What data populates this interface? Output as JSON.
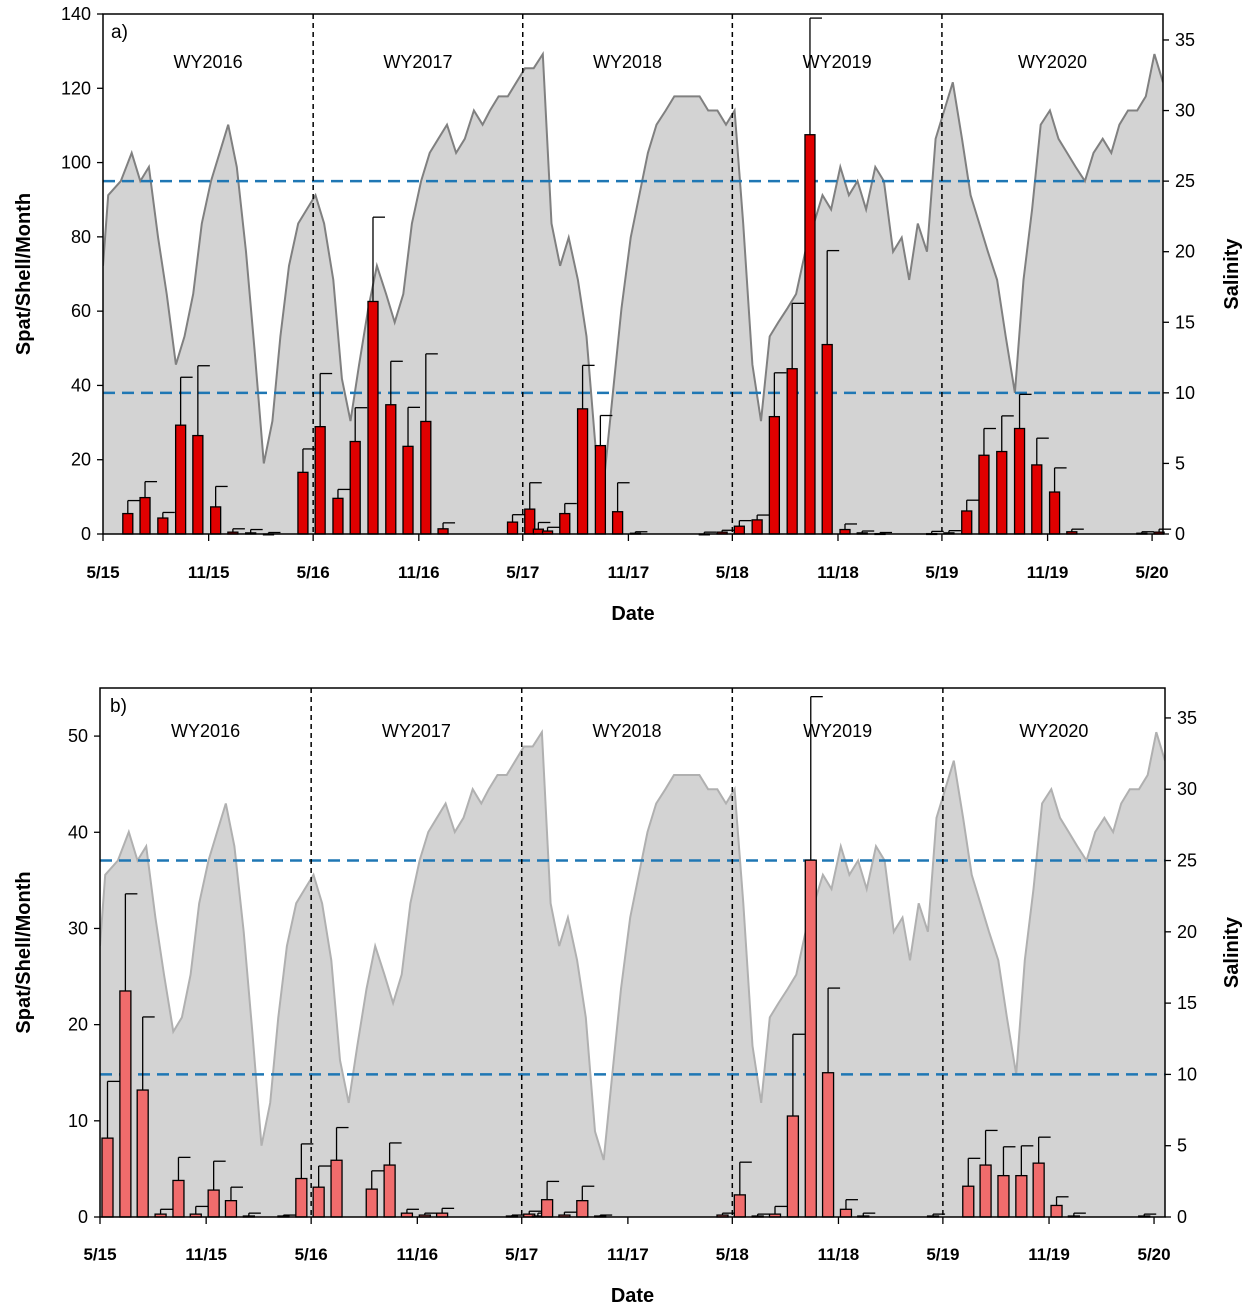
{
  "chart_data": [
    {
      "type": "bar",
      "panel_label": "a)",
      "title": "",
      "xlabel": "Date",
      "ylabel": "Spat/Shell/Month",
      "y2label": "Salinity",
      "x_range": [
        "2015-05-01",
        "2020-05-20"
      ],
      "ylim": [
        0,
        140
      ],
      "y2lim": [
        0,
        36.84
      ],
      "yticks": [
        0,
        20,
        40,
        60,
        80,
        100,
        120,
        140
      ],
      "y2ticks": [
        0,
        5,
        10,
        15,
        20,
        25,
        30,
        35
      ],
      "xtick_labels": [
        "5/15",
        "11/15",
        "5/16",
        "11/16",
        "5/17",
        "11/17",
        "5/18",
        "11/18",
        "5/19",
        "11/19",
        "5/20"
      ],
      "xtick_dates": [
        "2015-05-01",
        "2015-11-01",
        "2016-05-01",
        "2016-11-01",
        "2017-05-01",
        "2017-11-01",
        "2018-05-01",
        "2018-11-01",
        "2019-05-01",
        "2019-11-01",
        "2020-05-01"
      ],
      "water_year_labels": [
        "WY2016",
        "WY2017",
        "WY2018",
        "WY2019",
        "WY2020"
      ],
      "water_year_boundaries": [
        "2016-05-01",
        "2017-05-01",
        "2018-05-01",
        "2019-05-01"
      ],
      "salinity_thresholds": [
        10,
        25
      ],
      "grid": false,
      "bar_color": "#e00000",
      "salinity_line_color": "#808080",
      "salinity_fill_color": "#d3d3d3",
      "threshold_color": "#1f77b4",
      "series": [
        {
          "kind": "bar",
          "dates": [
            "2015-06-01",
            "2015-07-01",
            "2015-08-01",
            "2015-09-01",
            "2015-10-01",
            "2015-11-01",
            "2015-12-01",
            "2016-01-01",
            "2016-02-01",
            "2016-04-01",
            "2016-05-01",
            "2016-06-01",
            "2016-07-01",
            "2016-08-01",
            "2016-09-01",
            "2016-10-01",
            "2016-11-01",
            "2016-12-01",
            "2017-04-01",
            "2017-05-01",
            "2017-05-16",
            "2017-06-01",
            "2017-07-01",
            "2017-08-01",
            "2017-09-01",
            "2017-10-01",
            "2017-11-01",
            "2018-03-01",
            "2018-04-01",
            "2018-05-01",
            "2018-06-01",
            "2018-07-01",
            "2018-08-01",
            "2018-09-01",
            "2018-10-01",
            "2018-11-01",
            "2018-12-01",
            "2019-01-01",
            "2019-04-01",
            "2019-05-01",
            "2019-06-01",
            "2019-07-01",
            "2019-08-01",
            "2019-09-01",
            "2019-10-01",
            "2019-11-01",
            "2019-12-01",
            "2020-04-01",
            "2020-05-01"
          ],
          "values": [
            5.5,
            9.8,
            4.3,
            29.3,
            26.5,
            7.3,
            0.5,
            0.3,
            0,
            16.6,
            28.9,
            9.6,
            24.9,
            62.6,
            34.8,
            23.6,
            30.3,
            1.4,
            3.2,
            6.7,
            1.3,
            0.8,
            5.5,
            33.7,
            23.8,
            6.0,
            0.2,
            0,
            0.5,
            2.1,
            3.8,
            31.6,
            44.5,
            107.5,
            51.0,
            1.2,
            0.3,
            0.1,
            0.1,
            0.3,
            6.2,
            21.2,
            22.2,
            28.4,
            18.6,
            11.3,
            0.6,
            0.2,
            0.5
          ],
          "errors": [
            3.5,
            4.3,
            1.5,
            12.9,
            18.8,
            5.5,
            0.9,
            0.9,
            0.4,
            6.3,
            14.3,
            2.4,
            9.1,
            22.7,
            11.7,
            10.5,
            18.2,
            1.6,
            2.0,
            7.1,
            1.8,
            1.0,
            2.7,
            11.7,
            8.1,
            7.8,
            0.4,
            0.5,
            0.5,
            1.5,
            1.3,
            11.8,
            17.6,
            31.4,
            25.3,
            1.5,
            0.5,
            0.3,
            0.6,
            0.6,
            2.9,
            7.2,
            9.6,
            9.2,
            7.2,
            6.5,
            0.7,
            0.4,
            0.8
          ]
        },
        {
          "kind": "salinity",
          "dates": [
            "2015-05-01",
            "2015-05-10",
            "2015-06-01",
            "2015-06-20",
            "2015-07-05",
            "2015-07-20",
            "2015-08-05",
            "2015-08-20",
            "2015-09-05",
            "2015-09-20",
            "2015-10-05",
            "2015-10-20",
            "2015-11-05",
            "2015-11-20",
            "2015-12-05",
            "2015-12-20",
            "2016-01-05",
            "2016-01-20",
            "2016-02-05",
            "2016-02-20",
            "2016-03-05",
            "2016-03-20",
            "2016-04-05",
            "2016-04-20",
            "2016-05-05",
            "2016-05-20",
            "2016-06-05",
            "2016-06-20",
            "2016-07-05",
            "2016-07-20",
            "2016-08-05",
            "2016-08-20",
            "2016-09-05",
            "2016-09-20",
            "2016-10-05",
            "2016-10-20",
            "2016-11-05",
            "2016-11-20",
            "2016-12-05",
            "2016-12-20",
            "2017-01-05",
            "2017-01-20",
            "2017-02-05",
            "2017-02-20",
            "2017-03-05",
            "2017-03-20",
            "2017-04-05",
            "2017-04-20",
            "2017-05-05",
            "2017-05-20",
            "2017-06-05",
            "2017-06-20",
            "2017-07-05",
            "2017-07-20",
            "2017-08-05",
            "2017-08-20",
            "2017-09-05",
            "2017-09-20",
            "2017-10-05",
            "2017-10-20",
            "2017-11-05",
            "2017-11-20",
            "2017-12-05",
            "2017-12-20",
            "2018-01-05",
            "2018-01-20",
            "2018-02-05",
            "2018-02-20",
            "2018-03-05",
            "2018-03-20",
            "2018-04-05",
            "2018-04-20",
            "2018-05-05",
            "2018-05-20",
            "2018-06-05",
            "2018-06-20",
            "2018-07-05",
            "2018-07-20",
            "2018-08-05",
            "2018-08-20",
            "2018-09-05",
            "2018-09-20",
            "2018-10-05",
            "2018-10-20",
            "2018-11-05",
            "2018-11-20",
            "2018-12-05",
            "2018-12-20",
            "2019-01-05",
            "2019-01-20",
            "2019-02-05",
            "2019-02-20",
            "2019-03-05",
            "2019-03-20",
            "2019-04-05",
            "2019-04-20",
            "2019-05-05",
            "2019-05-20",
            "2019-06-05",
            "2019-06-20",
            "2019-07-05",
            "2019-07-20",
            "2019-08-05",
            "2019-08-20",
            "2019-09-05",
            "2019-09-20",
            "2019-10-05",
            "2019-10-20",
            "2019-11-05",
            "2019-11-20",
            "2019-12-05",
            "2019-12-20",
            "2020-01-05",
            "2020-01-20",
            "2020-02-05",
            "2020-02-20",
            "2020-03-05",
            "2020-03-20",
            "2020-04-05",
            "2020-04-20",
            "2020-05-05",
            "2020-05-20"
          ],
          "values": [
            19,
            24,
            25,
            27,
            25,
            26,
            21,
            17,
            12,
            14,
            17,
            22,
            25,
            27,
            29,
            26,
            20,
            13,
            5,
            8,
            14,
            19,
            22,
            23,
            24,
            22,
            18,
            11,
            8,
            12,
            16,
            19,
            17,
            15,
            17,
            22,
            25,
            27,
            28,
            29,
            27,
            28,
            30,
            29,
            30,
            31,
            31,
            32,
            33,
            33,
            34,
            22,
            19,
            21,
            18,
            14,
            6,
            4,
            10,
            16,
            21,
            24,
            27,
            29,
            30,
            31,
            31,
            31,
            31,
            30,
            30,
            29,
            30,
            22,
            12,
            8,
            14,
            15,
            16,
            17,
            20,
            22,
            24,
            23,
            26,
            24,
            25,
            23,
            26,
            25,
            20,
            21,
            18,
            22,
            20,
            28,
            30,
            32,
            28,
            24,
            22,
            20,
            18,
            14,
            10,
            18,
            23,
            29,
            30,
            28,
            27,
            26,
            25,
            27,
            28,
            27,
            29,
            30,
            30,
            31,
            34,
            32
          ]
        }
      ]
    },
    {
      "type": "bar",
      "panel_label": "b)",
      "title": "",
      "xlabel": "Date",
      "ylabel": "Spat/Shell/Month",
      "y2label": "Salinity",
      "x_range": [
        "2015-05-01",
        "2020-05-20"
      ],
      "ylim": [
        0,
        55
      ],
      "y2lim": [
        0,
        37.1
      ],
      "yticks": [
        0,
        10,
        20,
        30,
        40,
        50
      ],
      "y2ticks": [
        0,
        5,
        10,
        15,
        20,
        25,
        30,
        35
      ],
      "xtick_labels": [
        "5/15",
        "11/15",
        "5/16",
        "11/16",
        "5/17",
        "11/17",
        "5/18",
        "11/18",
        "5/19",
        "11/19",
        "5/20"
      ],
      "xtick_dates": [
        "2015-05-01",
        "2015-11-01",
        "2016-05-01",
        "2016-11-01",
        "2017-05-01",
        "2017-11-01",
        "2018-05-01",
        "2018-11-01",
        "2019-05-01",
        "2019-11-01",
        "2020-05-01"
      ],
      "water_year_labels": [
        "WY2016",
        "WY2017",
        "WY2018",
        "WY2019",
        "WY2020"
      ],
      "water_year_boundaries": [
        "2016-05-01",
        "2017-05-01",
        "2018-05-01",
        "2019-05-01"
      ],
      "salinity_thresholds": [
        10,
        25
      ],
      "grid": false,
      "bar_color": "#f06c6c",
      "salinity_line_color": "#b0b0b0",
      "salinity_fill_color": "#d3d3d3",
      "threshold_color": "#1f77b4",
      "series": [
        {
          "kind": "bar",
          "dates": [
            "2015-05-01",
            "2015-06-01",
            "2015-07-01",
            "2015-08-01",
            "2015-09-01",
            "2015-10-01",
            "2015-11-01",
            "2015-12-01",
            "2016-01-01",
            "2016-03-01",
            "2016-04-01",
            "2016-05-01",
            "2016-06-01",
            "2016-08-01",
            "2016-09-01",
            "2016-10-01",
            "2016-11-01",
            "2016-12-01",
            "2017-04-01",
            "2017-05-01",
            "2017-05-16",
            "2017-06-01",
            "2017-07-01",
            "2017-08-01",
            "2017-09-01",
            "2018-04-01",
            "2018-05-01",
            "2018-06-01",
            "2018-07-01",
            "2018-08-01",
            "2018-09-01",
            "2018-10-01",
            "2018-11-01",
            "2018-12-01",
            "2019-04-01",
            "2019-06-01",
            "2019-07-01",
            "2019-08-01",
            "2019-09-01",
            "2019-10-01",
            "2019-11-01",
            "2019-12-01",
            "2020-04-01"
          ],
          "values": [
            8.2,
            23.5,
            13.2,
            0.3,
            3.8,
            0.3,
            2.8,
            1.7,
            0.1,
            0.1,
            4.0,
            3.1,
            5.9,
            2.9,
            5.4,
            0.4,
            0.2,
            0.4,
            0.1,
            0.3,
            0.1,
            1.8,
            0.2,
            1.7,
            0.1,
            0.2,
            2.3,
            0.1,
            0.3,
            10.5,
            37.1,
            15.0,
            0.8,
            0.1,
            0.1,
            3.2,
            5.4,
            4.3,
            4.3,
            5.6,
            1.2,
            0.1,
            0.1
          ],
          "errors": [
            5.9,
            10.1,
            7.6,
            0.5,
            2.4,
            0.8,
            3.0,
            1.4,
            0.3,
            0.1,
            3.6,
            2.2,
            3.4,
            1.9,
            2.3,
            0.4,
            0.2,
            0.5,
            0.1,
            0.3,
            0.3,
            1.9,
            0.3,
            1.5,
            0.1,
            0.2,
            3.4,
            0.2,
            0.8,
            8.5,
            17.0,
            8.8,
            1.0,
            0.3,
            0.2,
            2.9,
            3.6,
            3.0,
            3.1,
            2.7,
            0.9,
            0.3,
            0.2
          ]
        },
        {
          "kind": "salinity",
          "dates": [
            "2015-05-01",
            "2015-05-10",
            "2015-06-01",
            "2015-06-20",
            "2015-07-05",
            "2015-07-20",
            "2015-08-05",
            "2015-08-20",
            "2015-09-05",
            "2015-09-20",
            "2015-10-05",
            "2015-10-20",
            "2015-11-05",
            "2015-11-20",
            "2015-12-05",
            "2015-12-20",
            "2016-01-05",
            "2016-01-20",
            "2016-02-05",
            "2016-02-20",
            "2016-03-05",
            "2016-03-20",
            "2016-04-05",
            "2016-04-20",
            "2016-05-05",
            "2016-05-20",
            "2016-06-05",
            "2016-06-20",
            "2016-07-05",
            "2016-07-20",
            "2016-08-05",
            "2016-08-20",
            "2016-09-05",
            "2016-09-20",
            "2016-10-05",
            "2016-10-20",
            "2016-11-05",
            "2016-11-20",
            "2016-12-05",
            "2016-12-20",
            "2017-01-05",
            "2017-01-20",
            "2017-02-05",
            "2017-02-20",
            "2017-03-05",
            "2017-03-20",
            "2017-04-05",
            "2017-04-20",
            "2017-05-05",
            "2017-05-20",
            "2017-06-05",
            "2017-06-20",
            "2017-07-05",
            "2017-07-20",
            "2017-08-05",
            "2017-08-20",
            "2017-09-05",
            "2017-09-20",
            "2017-10-05",
            "2017-10-20",
            "2017-11-05",
            "2017-11-20",
            "2017-12-05",
            "2017-12-20",
            "2018-01-05",
            "2018-01-20",
            "2018-02-05",
            "2018-02-20",
            "2018-03-05",
            "2018-03-20",
            "2018-04-05",
            "2018-04-20",
            "2018-05-05",
            "2018-05-20",
            "2018-06-05",
            "2018-06-20",
            "2018-07-05",
            "2018-07-20",
            "2018-08-05",
            "2018-08-20",
            "2018-09-05",
            "2018-09-20",
            "2018-10-05",
            "2018-10-20",
            "2018-11-05",
            "2018-11-20",
            "2018-12-05",
            "2018-12-20",
            "2019-01-05",
            "2019-01-20",
            "2019-02-05",
            "2019-02-20",
            "2019-03-05",
            "2019-03-20",
            "2019-04-05",
            "2019-04-20",
            "2019-05-05",
            "2019-05-20",
            "2019-06-05",
            "2019-06-20",
            "2019-07-05",
            "2019-07-20",
            "2019-08-05",
            "2019-08-20",
            "2019-09-05",
            "2019-09-20",
            "2019-10-05",
            "2019-10-20",
            "2019-11-05",
            "2019-11-20",
            "2019-12-05",
            "2019-12-20",
            "2020-01-05",
            "2020-01-20",
            "2020-02-05",
            "2020-02-20",
            "2020-03-05",
            "2020-03-20",
            "2020-04-05",
            "2020-04-20",
            "2020-05-05",
            "2020-05-20"
          ],
          "values": [
            19,
            24,
            25,
            27,
            25,
            26,
            21,
            17,
            13,
            14,
            17,
            22,
            25,
            27,
            29,
            26,
            20,
            13,
            5,
            8,
            14,
            19,
            22,
            23,
            24,
            22,
            18,
            11,
            8,
            12,
            16,
            19,
            17,
            15,
            17,
            22,
            25,
            27,
            28,
            29,
            27,
            28,
            30,
            29,
            30,
            31,
            31,
            32,
            33,
            33,
            34,
            22,
            19,
            21,
            18,
            14,
            6,
            4,
            10,
            16,
            21,
            24,
            27,
            29,
            30,
            31,
            31,
            31,
            31,
            30,
            30,
            29,
            30,
            22,
            12,
            8,
            14,
            15,
            16,
            17,
            20,
            22,
            24,
            23,
            26,
            24,
            25,
            23,
            26,
            25,
            20,
            21,
            18,
            22,
            20,
            28,
            30,
            32,
            28,
            24,
            22,
            20,
            18,
            14,
            10,
            18,
            23,
            29,
            30,
            28,
            27,
            26,
            25,
            27,
            28,
            27,
            29,
            30,
            30,
            31,
            34,
            32
          ]
        }
      ]
    }
  ]
}
